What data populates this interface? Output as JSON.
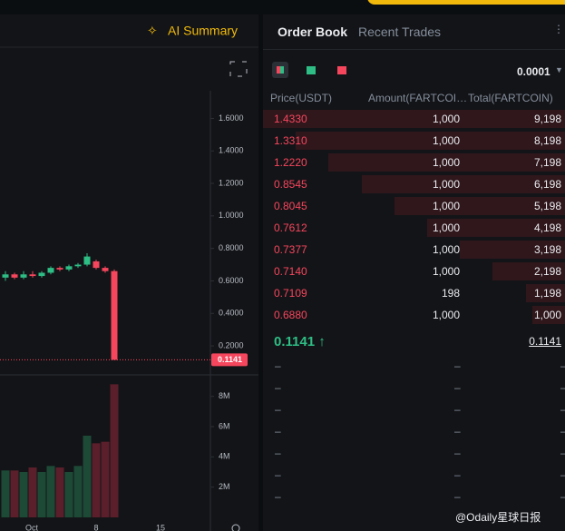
{
  "chart_panel": {
    "header_button": "AI Summary"
  },
  "chart_data": {
    "type": "candlestick",
    "open": [
      0.62,
      0.64,
      0.62,
      0.64,
      0.63,
      0.65,
      0.68,
      0.67,
      0.69,
      0.7,
      0.72,
      0.68,
      0.66
    ],
    "high": [
      0.66,
      0.65,
      0.66,
      0.66,
      0.66,
      0.69,
      0.69,
      0.7,
      0.71,
      0.77,
      0.73,
      0.69,
      0.67
    ],
    "low": [
      0.6,
      0.61,
      0.61,
      0.62,
      0.62,
      0.64,
      0.66,
      0.66,
      0.68,
      0.69,
      0.67,
      0.65,
      0.1141
    ],
    "close": [
      0.64,
      0.62,
      0.64,
      0.63,
      0.65,
      0.68,
      0.67,
      0.69,
      0.7,
      0.75,
      0.68,
      0.66,
      0.1141
    ],
    "volume": [
      3.1,
      3.1,
      3.0,
      3.3,
      3.0,
      3.4,
      3.3,
      3.0,
      3.4,
      5.4,
      4.9,
      5.0,
      8.8
    ],
    "up_color": "#2ebd85",
    "down_color": "#f6465d",
    "ylim": [
      0.027,
      1.798
    ],
    "yticks": [
      {
        "value": 0.2,
        "label": "0.2000"
      },
      {
        "value": 0.4,
        "label": "0.4000"
      },
      {
        "value": 0.6,
        "label": "0.6000"
      },
      {
        "value": 0.8,
        "label": "0.8000"
      },
      {
        "value": 1,
        "label": "1.0000"
      },
      {
        "value": 1.2,
        "label": "1.2000"
      },
      {
        "value": 1.4,
        "label": "1.4000"
      },
      {
        "value": 1.6,
        "label": "1.6000"
      }
    ],
    "last_price": 0.1141,
    "y2lim": [
      0,
      9.3
    ],
    "y2ticks": [
      {
        "value": 2,
        "label": "2M"
      },
      {
        "value": 4,
        "label": "4M"
      },
      {
        "value": 6,
        "label": "6M"
      },
      {
        "value": 8,
        "label": "8M"
      }
    ],
    "x_labels": [
      "Oct",
      "8",
      "15"
    ]
  },
  "order_book": {
    "tabs": [
      "Order Book",
      "Recent Trades"
    ],
    "tick_size": "0.0001",
    "columns": [
      "Price(USDT)",
      "Amount(FARTCOI…",
      "Total(FARTCOIN)"
    ],
    "asks": [
      {
        "price": "1.4330",
        "amount": "1,000",
        "total": {
          "value": 9198,
          "label": "9,198"
        }
      },
      {
        "price": "1.3310",
        "amount": "1,000",
        "total": {
          "value": 8198,
          "label": "8,198"
        }
      },
      {
        "price": "1.2220",
        "amount": "1,000",
        "total": {
          "value": 7198,
          "label": "7,198"
        }
      },
      {
        "price": "0.8545",
        "amount": "1,000",
        "total": {
          "value": 6198,
          "label": "6,198"
        }
      },
      {
        "price": "0.8045",
        "amount": "1,000",
        "total": {
          "value": 5198,
          "label": "5,198"
        }
      },
      {
        "price": "0.7612",
        "amount": "1,000",
        "total": {
          "value": 4198,
          "label": "4,198"
        }
      },
      {
        "price": "0.7377",
        "amount": "1,000",
        "total": {
          "value": 3198,
          "label": "3,198"
        }
      },
      {
        "price": "0.7140",
        "amount": "1,000",
        "total": {
          "value": 2198,
          "label": "2,198"
        }
      },
      {
        "price": "0.7109",
        "amount": "198",
        "total": {
          "value": 1198,
          "label": "1,198"
        }
      },
      {
        "price": "0.6880",
        "amount": "1,000",
        "total": {
          "value": 1000,
          "label": "1,000"
        }
      }
    ],
    "last_price": "0.1141",
    "last_arrow": "↑",
    "mark_price": "0.1141",
    "empty": "–"
  },
  "watermark": "@Odaily星球日报"
}
